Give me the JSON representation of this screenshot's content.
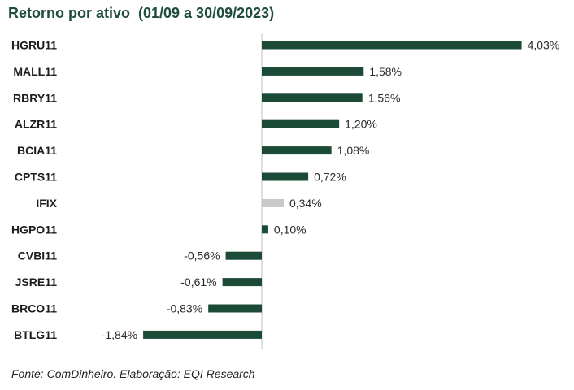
{
  "title": "Retorno por ativo  (01/09 a 30/09/2023)",
  "source": "Fonte: ComDinheiro. Elaboração: EQI Research",
  "colors": {
    "bar": "#1b4b37",
    "benchmark_bar": "#c9c9c9",
    "axis": "#bfbfbf",
    "category_text": "#1c1c1c",
    "value_text": "#2a2a2a",
    "title": "#1f4d3b"
  },
  "chart_data": {
    "type": "bar",
    "orientation": "horizontal",
    "title": "Retorno por ativo  (01/09 a 30/09/2023)",
    "categories": [
      "HGRU11",
      "MALL11",
      "RBRY11",
      "ALZR11",
      "BCIA11",
      "CPTS11",
      "IFIX",
      "HGPO11",
      "CVBI11",
      "JSRE11",
      "BRCO11",
      "BTLG11"
    ],
    "values": [
      4.03,
      1.58,
      1.56,
      1.2,
      1.08,
      0.72,
      0.34,
      0.1,
      -0.56,
      -0.61,
      -0.83,
      -1.84
    ],
    "value_labels": [
      "4,03%",
      "1,58%",
      "1,56%",
      "1,20%",
      "1,08%",
      "0,72%",
      "0,34%",
      "0,10%",
      "-0,56%",
      "-0,61%",
      "-0,83%",
      "-1,84%"
    ],
    "highlight_category": "IFIX",
    "xlim": [
      -1.84,
      4.03
    ],
    "grid": false,
    "legend": "none"
  }
}
